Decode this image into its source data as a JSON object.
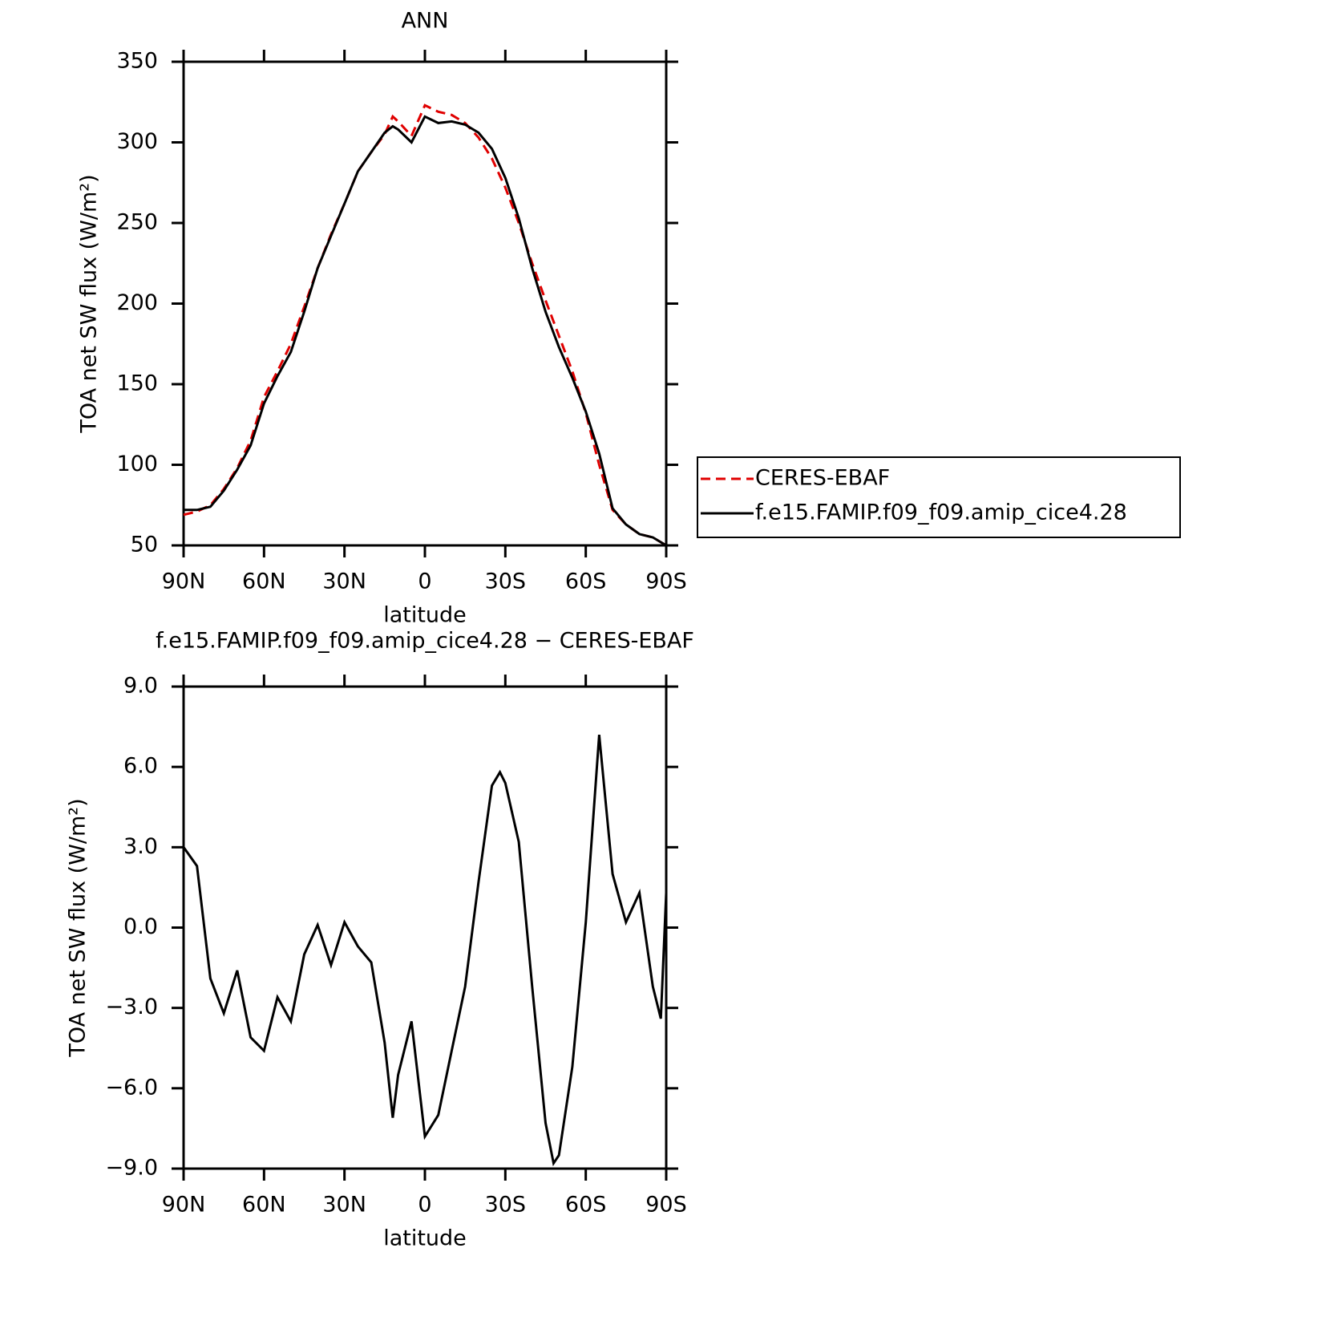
{
  "chart_data": [
    {
      "type": "line",
      "title": "ANN",
      "xlabel": "latitude",
      "ylabel": "TOA net SW flux (W/m²)",
      "xlim": [
        90,
        -90
      ],
      "xticks": [
        {
          "value": 90,
          "label": "90N"
        },
        {
          "value": 60,
          "label": "60N"
        },
        {
          "value": 30,
          "label": "30N"
        },
        0,
        {
          "value": -30,
          "label": "30S"
        },
        {
          "value": -60,
          "label": "60S"
        },
        {
          "value": -90,
          "label": "90S"
        }
      ],
      "ylim": [
        50,
        350
      ],
      "yticks": [
        50,
        100,
        150,
        200,
        250,
        300,
        350
      ],
      "legend": "right",
      "series": [
        {
          "name": "CERES-EBAF",
          "color": "#e00000",
          "dash": true,
          "x": [
            90,
            85,
            80,
            75,
            70,
            65,
            60,
            55,
            50,
            45,
            40,
            35,
            30,
            25,
            20,
            15,
            12,
            10,
            5,
            0,
            -5,
            -10,
            -15,
            -20,
            -25,
            -30,
            -35,
            -40,
            -45,
            -50,
            -55,
            -60,
            -65,
            -70,
            -75,
            -80,
            -85,
            -90
          ],
          "values": [
            69,
            71,
            75,
            85,
            98,
            115,
            142,
            158,
            175,
            198,
            222,
            243,
            262,
            282,
            294,
            305,
            316,
            313,
            304,
            323,
            319,
            317,
            312,
            303,
            290,
            272,
            250,
            225,
            202,
            180,
            158,
            132,
            100,
            72,
            63,
            57,
            55,
            50
          ]
        },
        {
          "name": "f.e15.FAMIP.f09_f09.amip_cice4.28",
          "color": "#000000",
          "dash": false,
          "x": [
            90,
            85,
            80,
            75,
            70,
            65,
            60,
            55,
            50,
            45,
            40,
            35,
            30,
            25,
            20,
            15,
            12,
            10,
            5,
            0,
            -5,
            -10,
            -15,
            -20,
            -25,
            -30,
            -35,
            -40,
            -45,
            -50,
            -55,
            -60,
            -65,
            -70,
            -75,
            -80,
            -85,
            -90
          ],
          "values": [
            72,
            72,
            74,
            84,
            97,
            112,
            138,
            155,
            170,
            195,
            222,
            242,
            262,
            282,
            294,
            306,
            310,
            308,
            300,
            316,
            312,
            313,
            311,
            306,
            296,
            278,
            253,
            222,
            195,
            173,
            154,
            133,
            107,
            73,
            63,
            57,
            55,
            50
          ]
        }
      ]
    },
    {
      "type": "line",
      "title": "f.e15.FAMIP.f09_f09.amip_cice4.28 − CERES-EBAF",
      "xlabel": "latitude",
      "ylabel": "TOA net SW flux (W/m²)",
      "xlim": [
        90,
        -90
      ],
      "xticks": [
        {
          "value": 90,
          "label": "90N"
        },
        {
          "value": 60,
          "label": "60N"
        },
        {
          "value": 30,
          "label": "30N"
        },
        0,
        {
          "value": -30,
          "label": "30S"
        },
        {
          "value": -60,
          "label": "60S"
        },
        {
          "value": -90,
          "label": "90S"
        }
      ],
      "ylim": [
        -9,
        9
      ],
      "yticks": [
        {
          "value": -9,
          "label": "−9.0"
        },
        {
          "value": -6,
          "label": "−6.0"
        },
        {
          "value": -3,
          "label": "−3.0"
        },
        {
          "value": 0,
          "label": "0.0"
        },
        {
          "value": 3,
          "label": "3.0"
        },
        {
          "value": 6,
          "label": "6.0"
        },
        {
          "value": 9,
          "label": "9.0"
        }
      ],
      "series": [
        {
          "color": "#000000",
          "dash": false,
          "x": [
            90,
            85,
            80,
            75,
            70,
            65,
            60,
            55,
            50,
            45,
            40,
            35,
            30,
            25,
            20,
            15,
            12,
            10,
            5,
            0,
            -5,
            -10,
            -15,
            -20,
            -25,
            -28,
            -30,
            -35,
            -40,
            -45,
            -48,
            -50,
            -55,
            -60,
            -65,
            -70,
            -75,
            -80,
            -85,
            -88,
            -90
          ],
          "values": [
            3.0,
            2.3,
            -1.9,
            -3.2,
            -1.6,
            -4.1,
            -4.6,
            -2.6,
            -3.5,
            -1.0,
            0.1,
            -1.4,
            0.2,
            -0.7,
            -1.3,
            -4.3,
            -7.1,
            -5.5,
            -3.5,
            -7.8,
            -7.0,
            -4.6,
            -2.2,
            1.7,
            5.3,
            5.8,
            5.4,
            3.2,
            -2.2,
            -7.3,
            -8.8,
            -8.5,
            -5.2,
            0.2,
            7.2,
            2.0,
            0.2,
            1.3,
            -2.2,
            -3.4,
            1.3
          ]
        }
      ]
    }
  ]
}
